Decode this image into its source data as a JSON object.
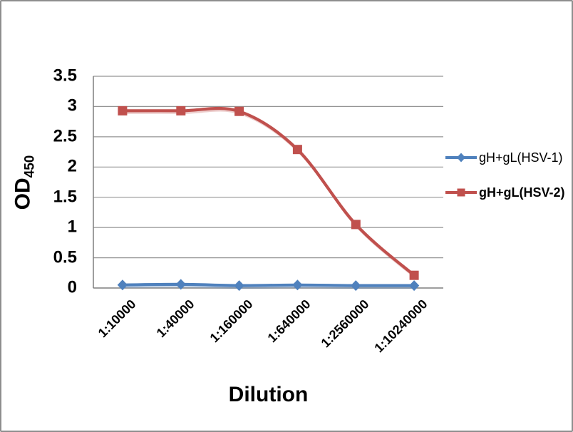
{
  "chart_data": {
    "type": "line",
    "smooth": true,
    "title": "",
    "xlabel": "Dilution",
    "ylabel": "OD450",
    "ylabel_main": "OD",
    "ylabel_sub": "450",
    "categories": [
      "1:10000",
      "1:40000",
      "1:160000",
      "1:640000",
      "1:2560000",
      "1:10240000"
    ],
    "series": [
      {
        "name": "gH+gL(HSV-1)",
        "color": "#4F81BD",
        "marker": "diamond",
        "label_bold": false,
        "values": [
          0.05,
          0.06,
          0.04,
          0.05,
          0.04,
          0.04
        ]
      },
      {
        "name": "gH+gL(HSV-2)",
        "color": "#C0504D",
        "marker": "square",
        "label_bold": true,
        "values": [
          2.93,
          2.93,
          2.92,
          2.29,
          1.05,
          0.21
        ]
      }
    ],
    "ylim": [
      0,
      3.5
    ],
    "ytick_step": 0.5,
    "yticks": [
      "3.5",
      "3",
      "2.5",
      "2",
      "1.5",
      "1",
      "0.5",
      "0"
    ],
    "grid": true,
    "legend_position": "right"
  },
  "style": {
    "gridline_color": "#949494",
    "axis_color": "#7f7f7f",
    "frame_border_color": "#8e8e8e",
    "text_color": "#000000",
    "background": "#ffffff"
  }
}
